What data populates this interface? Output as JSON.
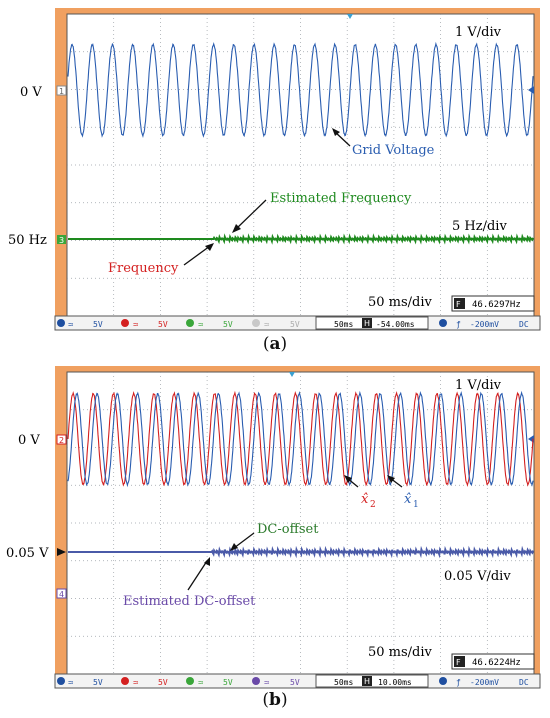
{
  "panels": [
    {
      "caption": "a",
      "scope": {
        "trigger_readout": "46.6297Hz",
        "status_bar": {
          "ch1": "5V",
          "ch2": "5V",
          "ch3": "5V",
          "ch4": "5V",
          "timebase": "50ms",
          "h_position": "-54.00ms",
          "trigger": "-200mV",
          "coupling": "DC"
        }
      },
      "labels": {
        "zero_level": "0 V",
        "freq_level": "50 Hz",
        "vdiv": "1 V/div",
        "fdiv": "5 Hz/div",
        "tdiv": "50 ms/div",
        "grid_voltage": "Grid Voltage",
        "estimated_frequency": "Estimated Frequency",
        "frequency": "Frequency"
      }
    },
    {
      "caption": "b",
      "scope": {
        "trigger_readout": "46.6224Hz",
        "status_bar": {
          "ch1": "5V",
          "ch2": "5V",
          "ch3": "5V",
          "ch4": "5V",
          "timebase": "50ms",
          "h_position": "10.00ms",
          "trigger": "-200mV",
          "coupling": "DC"
        }
      },
      "labels": {
        "zero_level": "0 V",
        "dc_level": "0.05 V",
        "vdiv": "1 V/div",
        "dcdiv": "0.05 V/div",
        "tdiv": "50 ms/div",
        "x2": "x̂",
        "x2_sub": "2",
        "x1": "x̂",
        "x1_sub": "1",
        "dc_offset": "DC-offset",
        "estimated_dc_offset": "Estimated DC-offset"
      }
    }
  ],
  "colors": {
    "bezel": "#f0a060",
    "grid_voltage": "#2a5db0",
    "x2": "#d42020",
    "x1": "#2a5db0",
    "frequency": "#1e8a1e",
    "dc_offset": "#2a7a2a",
    "estimated_dc": "#6a4aa8",
    "grid": "#9aa0a6"
  },
  "chart_data": [
    {
      "type": "line",
      "title": "",
      "xlabel": "",
      "ylabel": "",
      "series": [
        {
          "name": "Grid Voltage",
          "waveform": "sinusoid",
          "cycles_on_screen": 23,
          "amplitude_div": 1.2
        },
        {
          "name": "Frequency",
          "waveform": "flat_then_ripple"
        },
        {
          "name": "Estimated Frequency",
          "waveform": "flat_then_ripple"
        }
      ],
      "time_per_div": "50 ms/div",
      "voltage_per_div": "1 V/div",
      "frequency_per_div": "5 Hz/div",
      "frequency_reference": "50 Hz",
      "grid": true
    },
    {
      "type": "line",
      "title": "",
      "xlabel": "",
      "ylabel": "",
      "series": [
        {
          "name": "x̂2",
          "waveform": "sinusoid",
          "cycles_on_screen": 23,
          "amplitude_div": 1.2
        },
        {
          "name": "x̂1",
          "waveform": "sinusoid_quadrature",
          "cycles_on_screen": 23,
          "amplitude_div": 1.2
        },
        {
          "name": "DC-offset",
          "waveform": "flat_then_ripple"
        },
        {
          "name": "Estimated DC-offset",
          "waveform": "flat_then_ripple"
        }
      ],
      "time_per_div": "50 ms/div",
      "voltage_per_div": "1 V/div",
      "dc_per_div": "0.05 V/div",
      "dc_reference": "0.05 V",
      "grid": true
    }
  ]
}
